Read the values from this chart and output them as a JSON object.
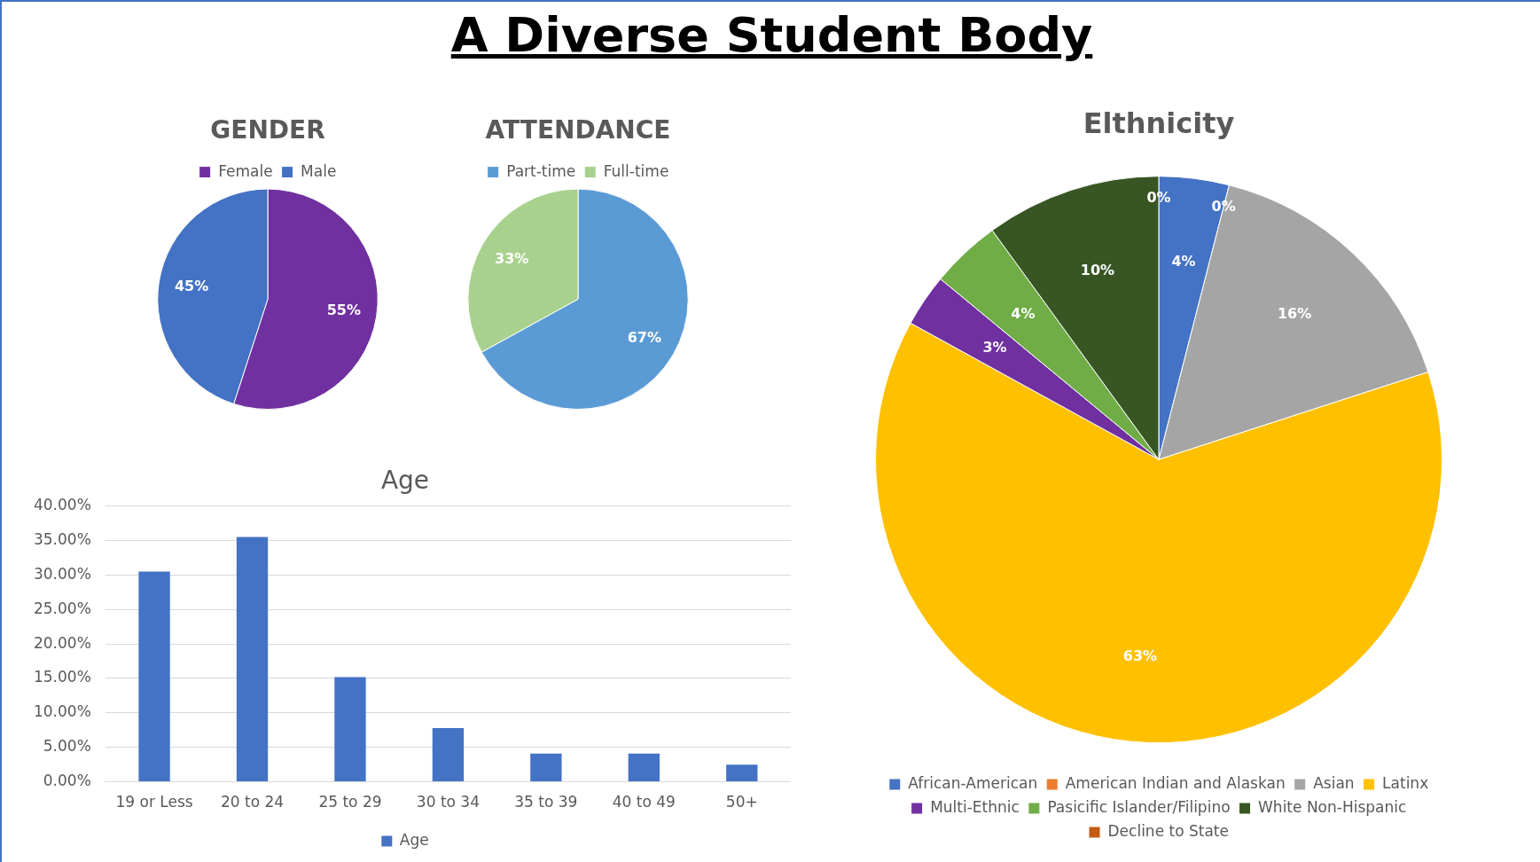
{
  "chart_data": [
    {
      "type": "other",
      "title": "A Diverse Student Body"
    },
    {
      "type": "pie",
      "title": "GENDER",
      "categories": [
        "Female",
        "Male"
      ],
      "values": [
        55,
        45
      ],
      "colors": [
        "#7030a0",
        "#4472c4"
      ],
      "value_labels": [
        "55%",
        "45%"
      ],
      "legend": "top"
    },
    {
      "type": "pie",
      "title": "ATTENDANCE",
      "categories": [
        "Part-time",
        "Full-time"
      ],
      "values": [
        67,
        33
      ],
      "colors": [
        "#5b9bd5",
        "#a9d18e"
      ],
      "value_labels": [
        "67%",
        "33%"
      ],
      "legend": "top"
    },
    {
      "type": "bar",
      "title": "Age",
      "categories": [
        "19 or Less",
        "20 to 24",
        "25 to 29",
        "30 to 34",
        "35 to 39",
        "40 to 49",
        "50+"
      ],
      "series": [
        {
          "name": "Age",
          "color": "#4472c4",
          "values": [
            30.5,
            35.5,
            15.2,
            7.8,
            4.1,
            4.1,
            2.5
          ]
        }
      ],
      "ylim": [
        0,
        40
      ],
      "yticks": [
        {
          "value": 0,
          "label": "0.00%"
        },
        {
          "value": 5,
          "label": "5.00%"
        },
        {
          "value": 10,
          "label": "10.00%"
        },
        {
          "value": 15,
          "label": "15.00%"
        },
        {
          "value": 20,
          "label": "20.00%"
        },
        {
          "value": 25,
          "label": "25.00%"
        },
        {
          "value": 30,
          "label": "30.00%"
        },
        {
          "value": 35,
          "label": "35.00%"
        },
        {
          "value": 40,
          "label": "40.00%"
        }
      ],
      "grid": "y",
      "legend": "bottom"
    },
    {
      "type": "pie",
      "title": "Elthnicity",
      "categories": [
        "African-American",
        "American Indian and Alaskan",
        "Asian",
        "Latinx",
        "Multi-Ethnic",
        "Pasicific Islander/Filipino",
        "White Non-Hispanic",
        "Decline to State"
      ],
      "values": [
        4,
        0,
        16,
        63,
        3,
        4,
        10,
        0
      ],
      "colors": [
        "#4472c4",
        "#ed7d31",
        "#a5a5a5",
        "#ffc000",
        "#7030a0",
        "#70ad47",
        "#375623",
        "#c55a11"
      ],
      "value_labels": [
        "4%",
        "0%",
        "16%",
        "63%",
        "3%",
        "4%",
        "10%",
        "0%"
      ],
      "legend": "bottom"
    }
  ]
}
